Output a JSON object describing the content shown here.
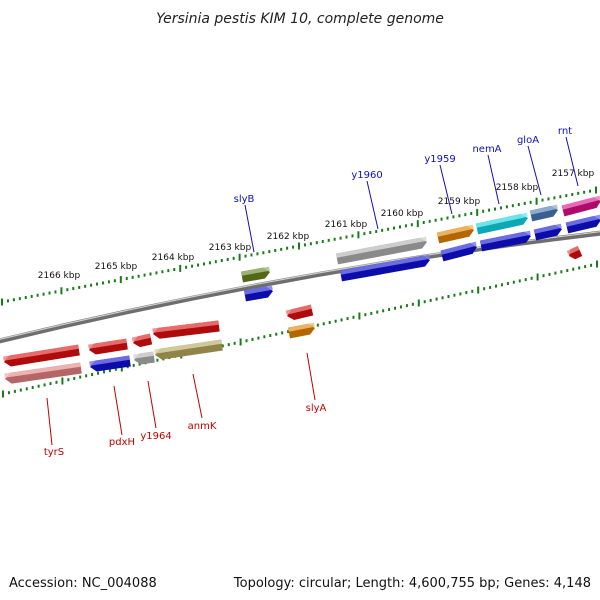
{
  "title": "Yersinia pestis KIM 10, complete genome",
  "footer": {
    "accession": "Accession: NC_004088",
    "summary": "Topology: circular; Length: 4,600,755 bp; Genes: 4,148"
  },
  "scale_labels": [
    "2157 kbp",
    "2158 kbp",
    "2159 kbp",
    "2160 kbp",
    "2161 kbp",
    "2162 kbp",
    "2163 kbp",
    "2164 kbp",
    "2165 kbp",
    "2166 kbp"
  ],
  "genes_top": [
    "rnt",
    "gloA",
    "nemA",
    "y1959",
    "y1960",
    "slyB"
  ],
  "genes_bottom": [
    "tyrS",
    "pdxH",
    "y1964",
    "anmK",
    "slyA"
  ],
  "colors": {
    "red": "#e81010",
    "blue": "#1010e0",
    "orange": "#f08800",
    "cyan": "#10e0f0",
    "steelblue": "#4a7fc0",
    "magenta": "#e81090",
    "gray": "#b8b8b8",
    "olive": "#6a8a20",
    "khaki": "#c0b060",
    "pink": "#f08888",
    "tick_green": "#1a7a1a"
  }
}
